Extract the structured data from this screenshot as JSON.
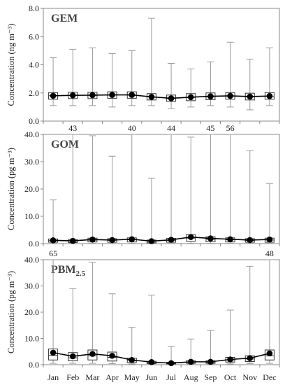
{
  "months": [
    "Jan",
    "Feb",
    "Mar",
    "Apr",
    "May",
    "Jun",
    "Jul",
    "Aug",
    "Sep",
    "Oct",
    "Nov",
    "Dec"
  ],
  "ylabel": "Concentration",
  "chart_data": [
    {
      "type": "box",
      "title": "GEM",
      "unit": "(ng m⁻³)",
      "ylim": [
        0,
        8
      ],
      "yticks": [
        "0.0",
        "2.0",
        "4.0",
        "6.0",
        "8.0"
      ],
      "ytick_values": [
        0,
        2,
        4,
        6,
        8
      ],
      "categories": [
        "Jan",
        "Feb",
        "Mar",
        "Apr",
        "May",
        "Jun",
        "Jul",
        "Aug",
        "Sep",
        "Oct",
        "Nov",
        "Dec"
      ],
      "mean": [
        1.8,
        1.83,
        1.84,
        1.86,
        1.86,
        1.72,
        1.62,
        1.7,
        1.76,
        1.79,
        1.74,
        1.78
      ],
      "q1": [
        1.55,
        1.6,
        1.6,
        1.62,
        1.62,
        1.5,
        1.4,
        1.45,
        1.52,
        1.55,
        1.5,
        1.55
      ],
      "median": [
        1.8,
        1.82,
        1.83,
        1.85,
        1.85,
        1.72,
        1.6,
        1.68,
        1.75,
        1.78,
        1.72,
        1.77
      ],
      "q3": [
        2.02,
        2.05,
        2.05,
        2.08,
        2.08,
        1.95,
        1.85,
        1.95,
        2.0,
        2.02,
        1.98,
        2.02
      ],
      "min": [
        1.1,
        1.1,
        1.1,
        1.0,
        1.1,
        1.1,
        0.9,
        1.0,
        1.1,
        1.0,
        0.8,
        1.1
      ],
      "max": [
        4.5,
        5.1,
        5.2,
        4.8,
        5.0,
        7.3,
        4.1,
        3.7,
        4.2,
        5.6,
        4.4,
        5.2
      ],
      "over_labels": []
    },
    {
      "type": "box",
      "title": "GOM",
      "unit": "(pg m⁻³)",
      "ylim": [
        0,
        40
      ],
      "yticks": [
        "0.0",
        "10.0",
        "20.0",
        "30.0",
        "40.0"
      ],
      "ytick_values": [
        0,
        10,
        20,
        30,
        40
      ],
      "categories": [
        "Jan",
        "Feb",
        "Mar",
        "Apr",
        "May",
        "Jun",
        "Jul",
        "Aug",
        "Sep",
        "Oct",
        "Nov",
        "Dec"
      ],
      "mean": [
        1.2,
        1.0,
        1.5,
        1.3,
        1.6,
        0.9,
        1.4,
        2.4,
        1.9,
        1.6,
        1.3,
        1.5
      ],
      "q1": [
        0.5,
        0.4,
        0.6,
        0.5,
        0.6,
        0.3,
        0.5,
        0.9,
        0.7,
        0.6,
        0.5,
        0.5
      ],
      "median": [
        1.1,
        0.9,
        1.3,
        1.2,
        1.4,
        0.8,
        1.2,
        2.0,
        1.6,
        1.4,
        1.1,
        1.3
      ],
      "q3": [
        1.7,
        1.5,
        2.0,
        1.8,
        2.1,
        1.3,
        1.9,
        3.3,
        2.5,
        2.1,
        1.8,
        2.0
      ],
      "min": [
        0.1,
        0.1,
        0.1,
        0.1,
        0.1,
        0.1,
        0.1,
        0.1,
        0.1,
        0.1,
        0.1,
        0.1
      ],
      "max": [
        16.0,
        43,
        39.5,
        32.0,
        40,
        24.0,
        44,
        39.0,
        45,
        56,
        34.0,
        22.0
      ],
      "over_labels": [
        {
          "month": "Feb",
          "text": "43"
        },
        {
          "month": "May",
          "text": "40"
        },
        {
          "month": "Jul",
          "text": "44"
        },
        {
          "month": "Sep",
          "text": "45"
        },
        {
          "month": "Oct",
          "text": "56"
        }
      ]
    },
    {
      "type": "box",
      "title": "PBM",
      "title_sub": "2.5",
      "unit": "(pg m⁻³)",
      "ylim": [
        0,
        40
      ],
      "yticks": [
        "0.0",
        "10.0",
        "20.0",
        "30.0",
        "40.0"
      ],
      "ytick_values": [
        0,
        10,
        20,
        30,
        40
      ],
      "categories": [
        "Jan",
        "Feb",
        "Mar",
        "Apr",
        "May",
        "Jun",
        "Jul",
        "Aug",
        "Sep",
        "Oct",
        "Nov",
        "Dec"
      ],
      "mean": [
        4.6,
        3.2,
        4.1,
        3.4,
        1.8,
        1.0,
        0.6,
        1.1,
        1.1,
        2.0,
        2.5,
        4.3
      ],
      "q1": [
        1.8,
        1.5,
        1.8,
        1.4,
        0.8,
        0.4,
        0.3,
        0.5,
        0.5,
        1.0,
        1.2,
        1.8
      ],
      "median": [
        3.5,
        2.6,
        3.4,
        2.8,
        1.5,
        0.8,
        0.5,
        0.9,
        0.9,
        1.8,
        2.2,
        3.4
      ],
      "q3": [
        6.0,
        4.6,
        5.6,
        4.8,
        2.5,
        1.3,
        0.9,
        1.5,
        1.5,
        2.8,
        3.4,
        5.6
      ],
      "min": [
        0.5,
        0.5,
        0.5,
        0.4,
        0.3,
        0.2,
        0.1,
        0.2,
        0.2,
        0.3,
        0.4,
        0.5
      ],
      "max": [
        65,
        29.0,
        39.0,
        27.0,
        14.2,
        26.5,
        7.0,
        9.8,
        13.0,
        20.8,
        37.5,
        48
      ],
      "over_labels": [
        {
          "month": "Jan",
          "text": "65"
        },
        {
          "month": "Dec",
          "text": "48"
        }
      ]
    }
  ]
}
